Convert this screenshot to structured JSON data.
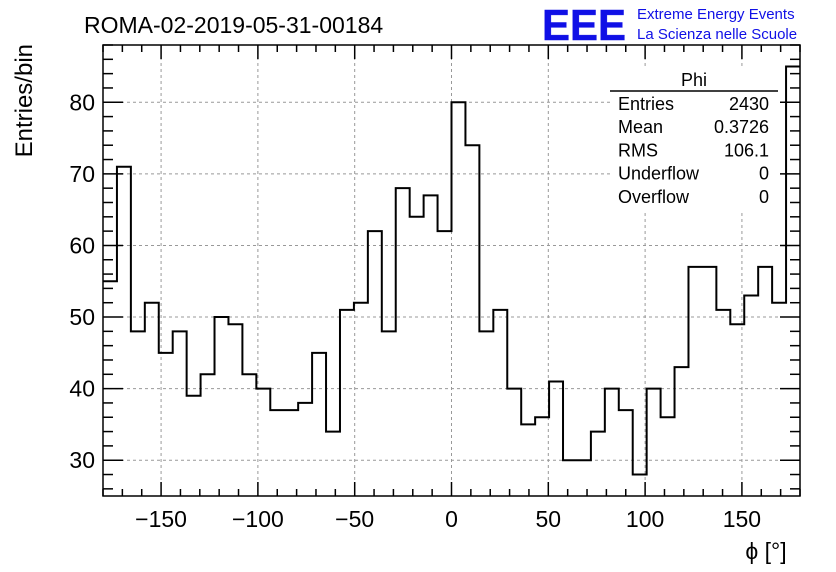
{
  "title": "ROMA-02-2019-05-31-00184",
  "logo": {
    "letters": "EEE",
    "line1": "Extreme Energy Events",
    "line2": "La Scienza nelle Scuole",
    "color": "#1010e6"
  },
  "stats": {
    "name": "Phi",
    "rows": [
      {
        "label": "Entries",
        "value": "2430"
      },
      {
        "label": "Mean",
        "value": "0.3726"
      },
      {
        "label": "RMS",
        "value": "106.1"
      },
      {
        "label": "Underflow",
        "value": "0"
      },
      {
        "label": "Overflow",
        "value": "0"
      }
    ]
  },
  "chart_data": {
    "type": "histogram",
    "title": "ROMA-02-2019-05-31-00184",
    "xlabel": "ϕ [°]",
    "ylabel": "Entries/bin",
    "xlim": [
      -180,
      180
    ],
    "ylim": [
      25,
      88
    ],
    "bin_width": 7.2,
    "bin_edges_start": -180,
    "values": [
      55,
      71,
      48,
      52,
      45,
      48,
      39,
      42,
      50,
      49,
      42,
      40,
      37,
      37,
      38,
      45,
      34,
      51,
      52,
      62,
      48,
      68,
      64,
      67,
      62,
      80,
      74,
      48,
      51,
      40,
      35,
      36,
      41,
      30,
      30,
      34,
      40,
      37,
      28,
      40,
      36,
      43,
      57,
      57,
      51,
      49,
      53,
      57,
      52,
      85
    ],
    "xticks": [
      -150,
      -100,
      -50,
      0,
      50,
      100,
      150
    ],
    "xtick_labels": [
      "−150",
      "−100",
      "−50",
      "0",
      "50",
      "100",
      "150"
    ],
    "yticks": [
      30,
      40,
      50,
      60,
      70,
      80
    ],
    "ytick_labels": [
      "30",
      "40",
      "50",
      "60",
      "70",
      "80"
    ],
    "grid": true,
    "line_color": "#000000"
  }
}
